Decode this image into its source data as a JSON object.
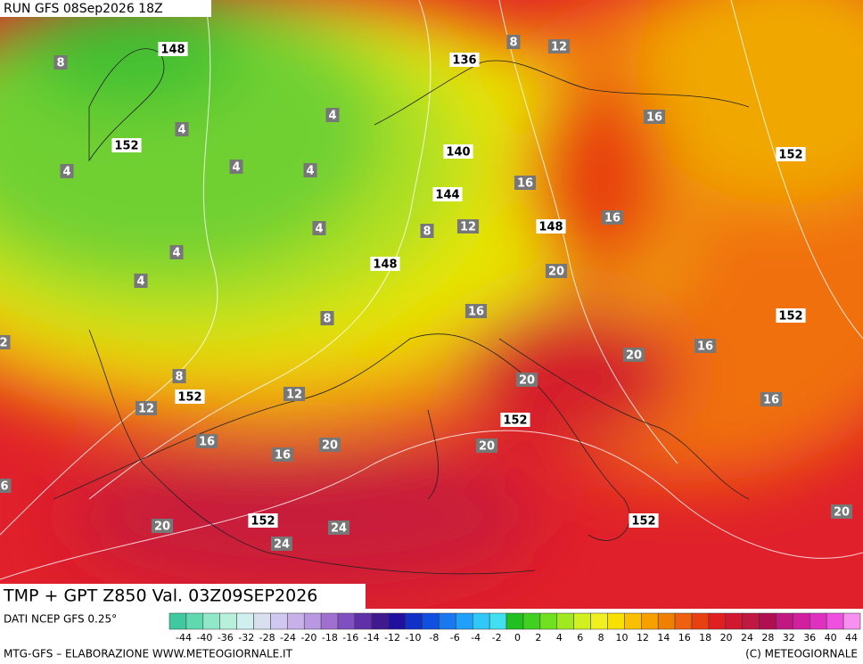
{
  "header": {
    "run": "RUN GFS 08Sep2026 18Z"
  },
  "map": {
    "height_labels": [
      "148",
      "136",
      "152",
      "140",
      "144",
      "148",
      "148",
      "152",
      "152",
      "152",
      "152",
      "152",
      "152"
    ],
    "temperature_labels": [
      "8",
      "8",
      "12",
      "16",
      "4",
      "4",
      "4",
      "4",
      "4",
      "16",
      "16",
      "12",
      "8",
      "4",
      "4",
      "4",
      "20",
      "8",
      "16",
      "16",
      "20",
      "2",
      "8",
      "20",
      "12",
      "12",
      "16",
      "16",
      "16",
      "20",
      "20",
      "6",
      "20",
      "24",
      "24",
      "20"
    ]
  },
  "footer": {
    "product": "TMP + GPT Z850 Val. 03Z09SEP2026",
    "source": "DATI NCEP GFS 0.25°",
    "credit": "MTG-GFS – ELABORAZIONE WWW.METEOGIORNALE.IT",
    "copyright": "(C) METEOGIORNALE"
  },
  "legend": {
    "labels": [
      -44,
      -40,
      -36,
      -32,
      -28,
      -24,
      -20,
      -18,
      -16,
      -14,
      -12,
      -10,
      -8,
      -6,
      -4,
      -2,
      0,
      2,
      4,
      6,
      8,
      10,
      12,
      14,
      16,
      18,
      20,
      24,
      28,
      32,
      36,
      40,
      44
    ]
  }
}
